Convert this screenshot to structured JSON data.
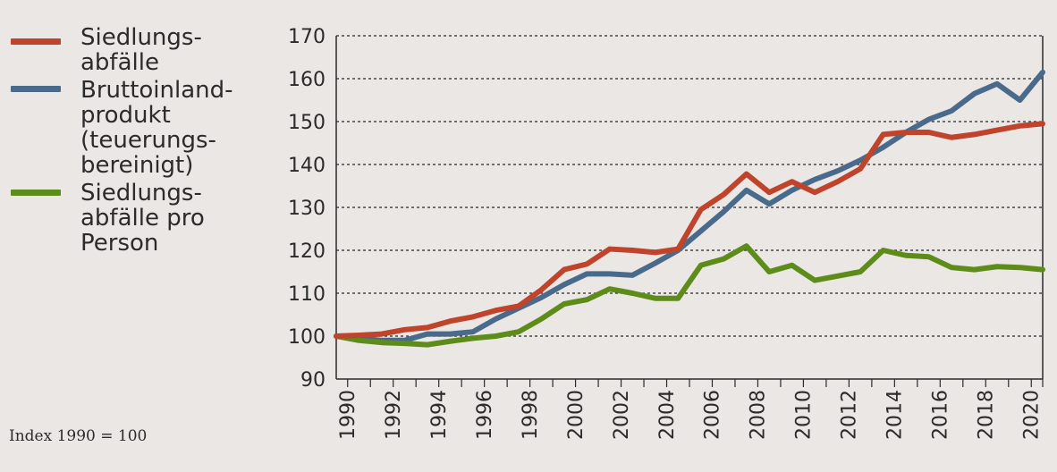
{
  "legend": {
    "entries": [
      {
        "label": "Siedlungs-\nabfälle",
        "color": "#c0432b"
      },
      {
        "label": "Bruttoinland-\nprodukt\n(teuerungs-\nbereinigt)",
        "color": "#4a6a8c"
      },
      {
        "label": "Siedlungs-\nabfälle pro\nPerson",
        "color": "#5e8c1a"
      }
    ]
  },
  "note": "Index 1990 = 100",
  "chart_data": {
    "type": "line",
    "title": "",
    "xlabel": "",
    "ylabel": "",
    "ylim": [
      90,
      170
    ],
    "yticks": [
      90,
      100,
      110,
      120,
      130,
      140,
      150,
      160,
      170
    ],
    "xlim": [
      1990,
      2021
    ],
    "xtick_labels": [
      "1990",
      "1992",
      "1994",
      "1996",
      "1998",
      "2000",
      "2002",
      "2004",
      "2006",
      "2008",
      "2010",
      "2012",
      "2014",
      "2016",
      "2018",
      "2020"
    ],
    "grid": "horizontal dashed",
    "x": [
      1990,
      1991,
      1992,
      1993,
      1994,
      1995,
      1996,
      1997,
      1998,
      1999,
      2000,
      2001,
      2002,
      2003,
      2004,
      2005,
      2006,
      2007,
      2008,
      2009,
      2010,
      2011,
      2012,
      2013,
      2014,
      2015,
      2016,
      2017,
      2018,
      2019,
      2020,
      2021
    ],
    "series": [
      {
        "name": "Siedlungsabfälle",
        "color": "#c0432b",
        "values": [
          100,
          100.2,
          100.5,
          101.5,
          102,
          103.5,
          104.5,
          106,
          107,
          110.8,
          115.5,
          116.8,
          120.3,
          120,
          119.5,
          120.3,
          129.5,
          133,
          137.8,
          133.5,
          136,
          133.5,
          136,
          139,
          147,
          147.5,
          147.5,
          146.3,
          147,
          148,
          149,
          149.5
        ]
      },
      {
        "name": "Bruttoinlandprodukt (teuerungsbereinigt)",
        "color": "#4a6a8c",
        "values": [
          100,
          99.5,
          99,
          99,
          100.5,
          100.5,
          101,
          104,
          106.5,
          109,
          112,
          114.5,
          114.5,
          114.2,
          117,
          120,
          124.5,
          129,
          134,
          130.8,
          134,
          136.5,
          138.5,
          141,
          144,
          147.5,
          150.5,
          152.5,
          156.5,
          158.8,
          155,
          161.5
        ]
      },
      {
        "name": "Siedlungsabfälle pro Person",
        "color": "#5e8c1a",
        "values": [
          100,
          99,
          98.5,
          98.3,
          98,
          98.8,
          99.5,
          100,
          101,
          104,
          107.5,
          108.5,
          111,
          110,
          108.8,
          108.8,
          116.5,
          118,
          121,
          115,
          116.5,
          113,
          114,
          115,
          120,
          118.8,
          118.5,
          116,
          115.5,
          116.2,
          116,
          115.5
        ]
      }
    ]
  }
}
